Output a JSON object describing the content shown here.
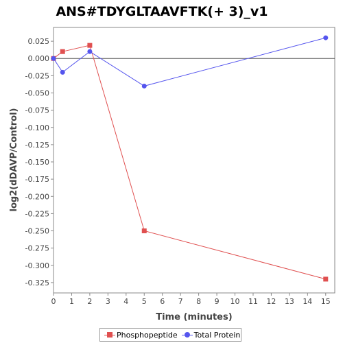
{
  "chart_data": {
    "type": "line",
    "title": "ANS#TDYGLTAAVFTK(+ 3)_v1",
    "xlabel": "Time (minutes)",
    "ylabel": "log2(dDAVP/Control)",
    "xlim": [
      0,
      15.5
    ],
    "ylim": [
      -0.34,
      0.045
    ],
    "x_ticks": [
      0,
      1,
      2,
      3,
      4,
      5,
      6,
      7,
      8,
      9,
      10,
      11,
      12,
      13,
      14,
      15
    ],
    "y_ticks": [
      0.025,
      0.0,
      -0.025,
      -0.05,
      -0.075,
      -0.1,
      -0.125,
      -0.15,
      -0.175,
      -0.2,
      -0.225,
      -0.25,
      -0.275,
      -0.3,
      -0.325
    ],
    "y_tick_labels": [
      "0.025",
      "0.000",
      "-0.025",
      "-0.050",
      "-0.075",
      "-0.100",
      "-0.125",
      "-0.150",
      "-0.175",
      "-0.200",
      "-0.225",
      "-0.250",
      "-0.275",
      "-0.300",
      "-0.325"
    ],
    "zero_line": true,
    "grid": false,
    "legend_position": "bottom",
    "series": [
      {
        "name": "Phosphopeptide",
        "color": "#e05050",
        "marker": "square",
        "x": [
          0,
          0.5,
          2,
          5,
          15
        ],
        "y": [
          0.0,
          0.01,
          0.019,
          -0.25,
          -0.32
        ]
      },
      {
        "name": "Total Protein",
        "color": "#5555ee",
        "marker": "circle",
        "x": [
          0,
          0.5,
          2,
          5,
          15
        ],
        "y": [
          0.0,
          -0.02,
          0.01,
          -0.04,
          0.03
        ]
      }
    ]
  }
}
